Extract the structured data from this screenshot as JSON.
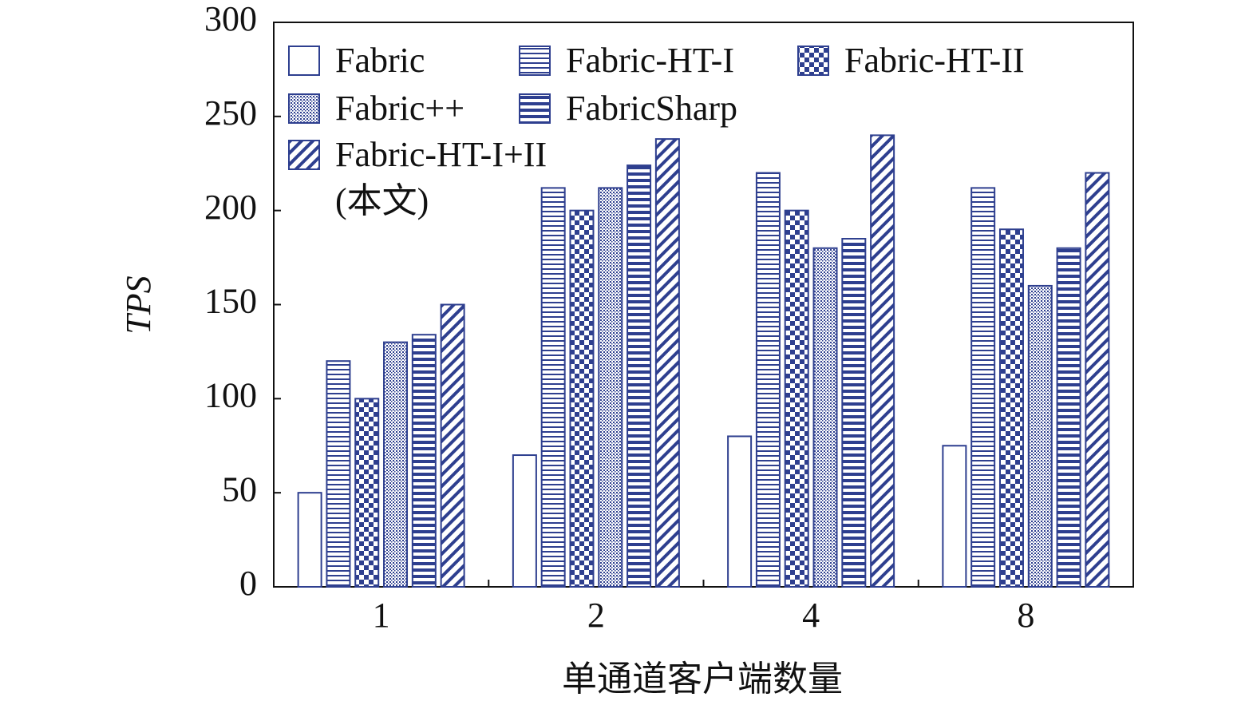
{
  "chart_data": {
    "type": "bar",
    "y_label": "TPS",
    "x_label": "单通道客户端数量",
    "categories": [
      "1",
      "2",
      "4",
      "8"
    ],
    "series": [
      {
        "name": "Fabric",
        "color": "#2e3f8f",
        "pattern": "none",
        "values": [
          50,
          70,
          80,
          75
        ]
      },
      {
        "name": "Fabric-HT-I",
        "color": "#2e3f8f",
        "pattern": "hlines",
        "values": [
          120,
          212,
          220,
          212
        ]
      },
      {
        "name": "Fabric-HT-II",
        "color": "#2e3f8f",
        "pattern": "check",
        "values": [
          100,
          200,
          200,
          190
        ]
      },
      {
        "name": "Fabric++",
        "color": "#2e3f8f",
        "pattern": "dots",
        "values": [
          130,
          212,
          180,
          160
        ]
      },
      {
        "name": "FabricSharp",
        "color": "#2e3f8f",
        "pattern": "hlines-thick",
        "values": [
          134,
          224,
          185,
          180
        ]
      },
      {
        "name": "Fabric-HT-I+II\n(本文)",
        "color": "#2e3f8f",
        "pattern": "diag",
        "values": [
          150,
          238,
          240,
          220
        ]
      }
    ],
    "ylim": [
      0,
      300
    ],
    "yticks": [
      0,
      50,
      100,
      150,
      200,
      250,
      300
    ],
    "grid": false,
    "legend": "upper left"
  }
}
